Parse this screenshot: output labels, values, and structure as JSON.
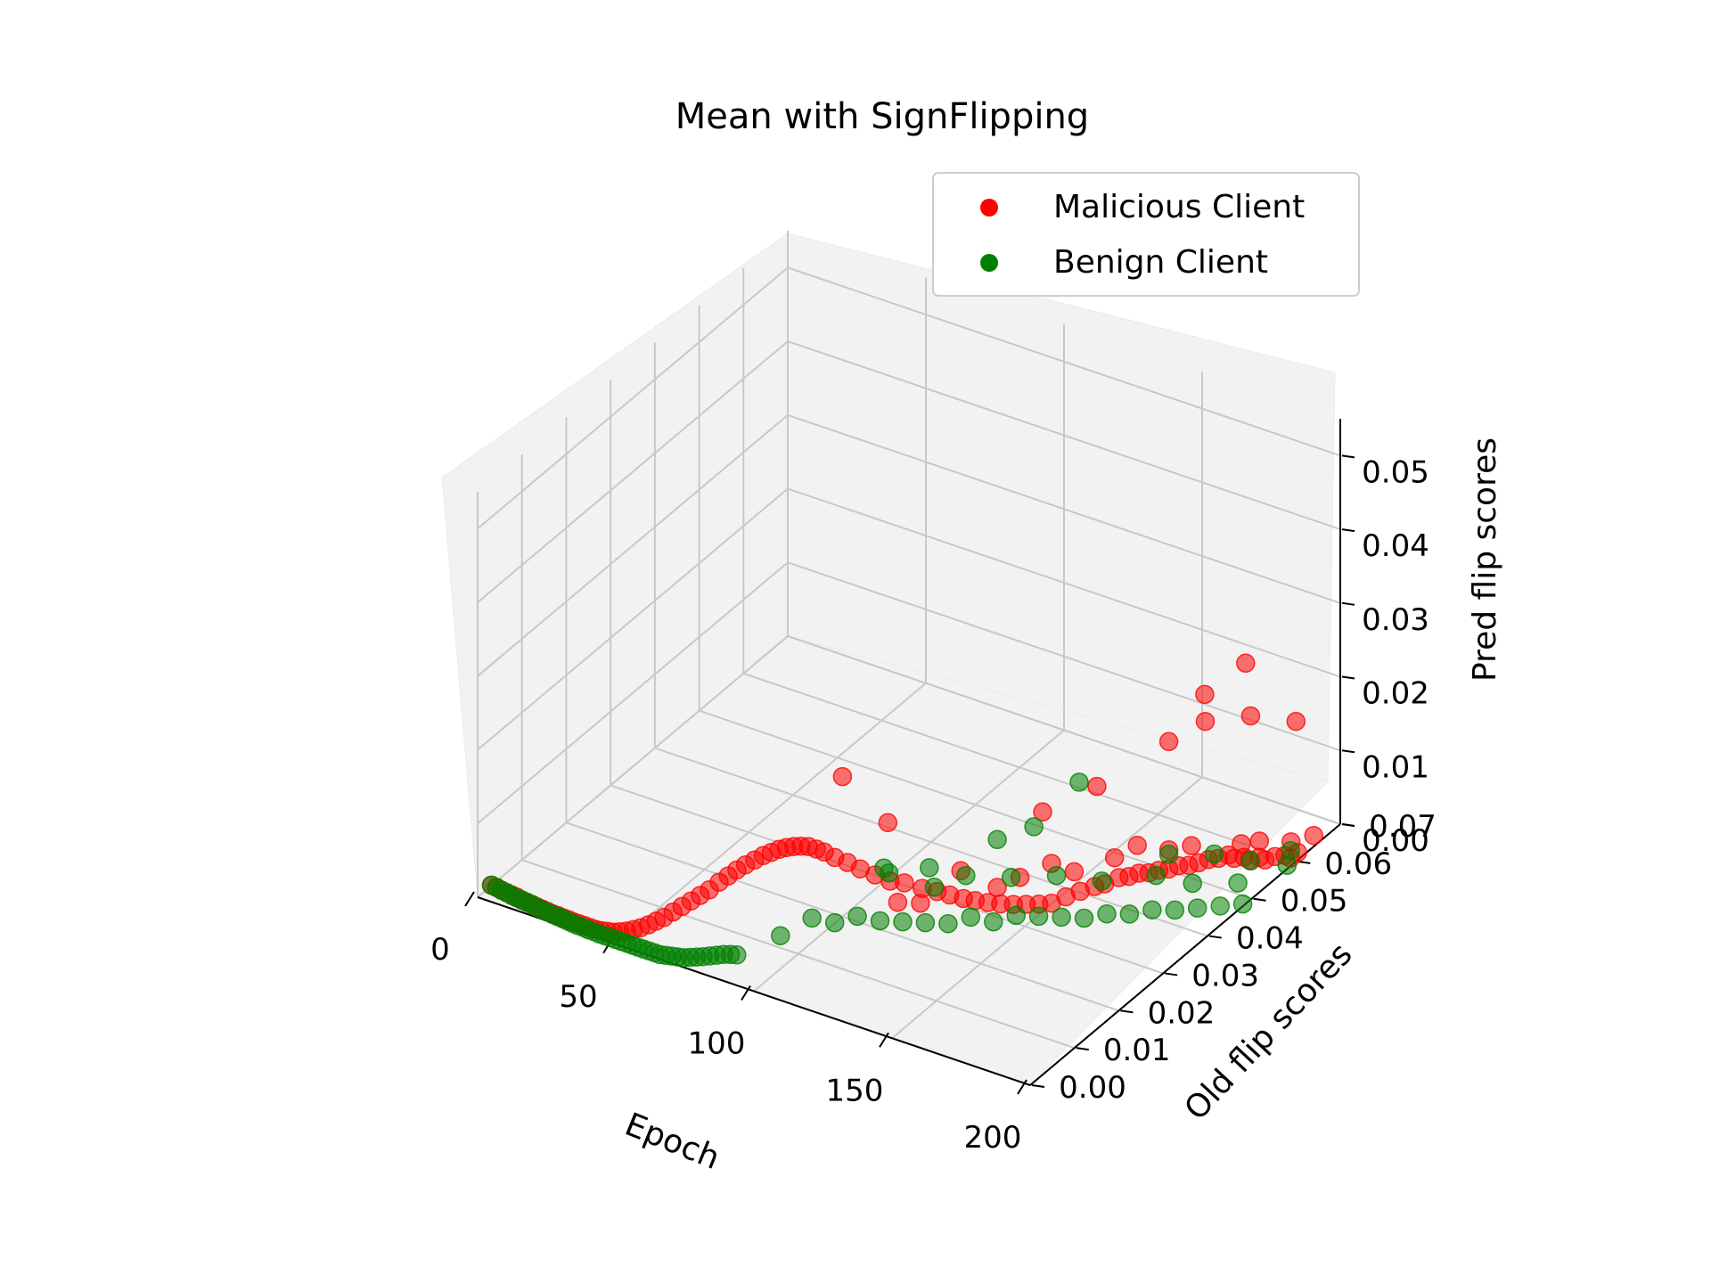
{
  "chart_data": {
    "type": "scatter",
    "projection": "3d",
    "title": "Mean with SignFlipping",
    "xlabel": "Epoch",
    "ylabel": "Old flip scores",
    "zlabel": "Pred flip scores",
    "xlim": [
      0,
      200
    ],
    "ylim": [
      0.0,
      0.07
    ],
    "zlim": [
      0.0,
      0.055
    ],
    "xticks": [
      "0",
      "50",
      "100",
      "150",
      "200"
    ],
    "yticks": [
      "0.00",
      "0.01",
      "0.02",
      "0.03",
      "0.04",
      "0.05",
      "0.06",
      "0.07"
    ],
    "zticks": [
      "0.00",
      "0.01",
      "0.02",
      "0.03",
      "0.04",
      "0.05"
    ],
    "grid": true,
    "legend_position": "top-right",
    "series": [
      {
        "name": "Malicious Client",
        "color": "#ff0000",
        "trend_points": []
      },
      {
        "name": "Benign Client",
        "color": "#008000",
        "trend_points": []
      }
    ],
    "scatter_points": {
      "malicious": [
        [
          1,
          0.0025,
          0.0005
        ],
        [
          3,
          0.0024,
          0.0005
        ],
        [
          5,
          0.0023,
          0.0004
        ],
        [
          7,
          0.0022,
          0.0004
        ],
        [
          9,
          0.0021,
          0.0004
        ],
        [
          11,
          0.002,
          0.0004
        ],
        [
          13,
          0.0019,
          0.0003
        ],
        [
          15,
          0.0018,
          0.0003
        ],
        [
          17,
          0.0017,
          0.0003
        ],
        [
          19,
          0.0016,
          0.0003
        ],
        [
          21,
          0.0015,
          0.0003
        ],
        [
          23,
          0.0014,
          0.0003
        ],
        [
          25,
          0.0013,
          0.0003
        ],
        [
          27,
          0.0013,
          0.0003
        ],
        [
          29,
          0.0012,
          0.0003
        ],
        [
          31,
          0.0012,
          0.0003
        ],
        [
          33,
          0.0011,
          0.0003
        ],
        [
          35,
          0.0011,
          0.0003
        ],
        [
          37,
          0.0011,
          0.0003
        ],
        [
          39,
          0.0011,
          0.0003
        ],
        [
          41,
          0.0011,
          0.0003
        ],
        [
          43,
          0.0011,
          0.0004
        ],
        [
          45,
          0.0012,
          0.0005
        ],
        [
          47,
          0.0013,
          0.0006
        ],
        [
          49,
          0.0015,
          0.0008
        ],
        [
          51,
          0.0018,
          0.001
        ],
        [
          53,
          0.0021,
          0.0013
        ],
        [
          55,
          0.0025,
          0.0016
        ],
        [
          57,
          0.003,
          0.002
        ],
        [
          59,
          0.0035,
          0.0025
        ],
        [
          61,
          0.004,
          0.003
        ],
        [
          63,
          0.0048,
          0.0036
        ],
        [
          65,
          0.0056,
          0.0042
        ],
        [
          67,
          0.0064,
          0.0048
        ],
        [
          69,
          0.0072,
          0.0054
        ],
        [
          71,
          0.008,
          0.006
        ],
        [
          73,
          0.009,
          0.0068
        ],
        [
          75,
          0.0098,
          0.0075
        ],
        [
          77,
          0.0105,
          0.0082
        ],
        [
          79,
          0.0112,
          0.0088
        ],
        [
          81,
          0.012,
          0.0093
        ],
        [
          83,
          0.0127,
          0.0098
        ],
        [
          85,
          0.0133,
          0.0102
        ],
        [
          87,
          0.0138,
          0.0106
        ],
        [
          89,
          0.0142,
          0.0109
        ],
        [
          91,
          0.0146,
          0.0111
        ],
        [
          93,
          0.015,
          0.0112
        ],
        [
          95,
          0.0154,
          0.0112
        ],
        [
          97,
          0.016,
          0.0108
        ],
        [
          99,
          0.0165,
          0.0104
        ],
        [
          102,
          0.017,
          0.0098
        ],
        [
          105,
          0.018,
          0.009
        ],
        [
          108,
          0.019,
          0.008
        ],
        [
          111,
          0.0205,
          0.0068
        ],
        [
          114,
          0.022,
          0.0056
        ],
        [
          116,
          0.024,
          0.0046
        ],
        [
          120,
          0.0255,
          0.0036
        ],
        [
          123,
          0.027,
          0.0028
        ],
        [
          126,
          0.028,
          0.0022
        ],
        [
          129,
          0.0292,
          0.0015
        ],
        [
          132,
          0.03,
          0.0012
        ],
        [
          135,
          0.031,
          0.0008
        ],
        [
          138,
          0.032,
          0.0005
        ],
        [
          141,
          0.033,
          0.0003
        ],
        [
          144,
          0.034,
          0.0002
        ],
        [
          147,
          0.035,
          0.0001
        ],
        [
          150,
          0.036,
          0.0001
        ],
        [
          152,
          0.038,
          0.0002
        ],
        [
          154,
          0.04,
          0.0002
        ],
        [
          156,
          0.042,
          0.0001
        ],
        [
          158,
          0.043,
          0.0002
        ],
        [
          160,
          0.045,
          0.0003
        ],
        [
          162,
          0.046,
          0.0002
        ],
        [
          164,
          0.047,
          0.0004
        ],
        [
          166,
          0.048,
          0.0002
        ],
        [
          168,
          0.049,
          0.0003
        ],
        [
          170,
          0.05,
          0.0002
        ],
        [
          172,
          0.051,
          0.0004
        ],
        [
          174,
          0.052,
          0.0002
        ],
        [
          176,
          0.053,
          0.0003
        ],
        [
          178,
          0.054,
          0.0005
        ],
        [
          180,
          0.055,
          0.0004
        ],
        [
          182,
          0.056,
          0.0006
        ],
        [
          184,
          0.056,
          0.0004
        ],
        [
          186,
          0.057,
          0.0003
        ],
        [
          188,
          0.057,
          0.0002
        ],
        [
          190,
          0.058,
          0.0003
        ],
        [
          192,
          0.058,
          0.0002
        ],
        [
          194,
          0.059,
          0.0004
        ],
        [
          196,
          0.06,
          0.0003
        ],
        [
          198,
          0.06,
          0.0002
        ],
        [
          199,
          0.061,
          0.0006
        ],
        [
          120,
          0.02,
          0.0045
        ],
        [
          125,
          0.022,
          0.004
        ],
        [
          130,
          0.028,
          0.006
        ],
        [
          140,
          0.03,
          0.004
        ],
        [
          145,
          0.032,
          0.005
        ],
        [
          150,
          0.036,
          0.0055
        ],
        [
          155,
          0.038,
          0.004
        ],
        [
          160,
          0.044,
          0.0035
        ],
        [
          165,
          0.046,
          0.0048
        ],
        [
          170,
          0.05,
          0.0028
        ],
        [
          175,
          0.052,
          0.003
        ],
        [
          185,
          0.057,
          0.002
        ],
        [
          190,
          0.058,
          0.0025
        ],
        [
          195,
          0.062,
          0.001
        ],
        [
          200,
          0.064,
          0.0015
        ],
        [
          110,
          0.024,
          0.012
        ],
        [
          100,
          0.02,
          0.019
        ],
        [
          150,
          0.034,
          0.0135
        ],
        [
          160,
          0.04,
          0.0152
        ],
        [
          170,
          0.05,
          0.0175
        ],
        [
          180,
          0.052,
          0.0205
        ],
        [
          190,
          0.056,
          0.0205
        ],
        [
          200,
          0.06,
          0.019
        ],
        [
          175,
          0.055,
          0.022
        ],
        [
          185,
          0.058,
          0.026
        ]
      ],
      "benign": [
        [
          1,
          0.0025,
          0.0005
        ],
        [
          3,
          0.0024,
          0.0005
        ],
        [
          5,
          0.0023,
          0.0004
        ],
        [
          7,
          0.0022,
          0.0004
        ],
        [
          9,
          0.0021,
          0.0003
        ],
        [
          11,
          0.002,
          0.0003
        ],
        [
          13,
          0.0019,
          0.0003
        ],
        [
          15,
          0.0018,
          0.0003
        ],
        [
          17,
          0.0017,
          0.0003
        ],
        [
          19,
          0.0016,
          0.0002
        ],
        [
          21,
          0.0015,
          0.0002
        ],
        [
          23,
          0.0014,
          0.0002
        ],
        [
          25,
          0.0013,
          0.0002
        ],
        [
          27,
          0.0012,
          0.0002
        ],
        [
          29,
          0.0011,
          0.0002
        ],
        [
          31,
          0.001,
          0.0002
        ],
        [
          33,
          0.0009,
          0.0002
        ],
        [
          35,
          0.0008,
          0.0002
        ],
        [
          37,
          0.0008,
          0.0002
        ],
        [
          39,
          0.0007,
          0.0002
        ],
        [
          41,
          0.0007,
          0.0002
        ],
        [
          43,
          0.0006,
          0.0002
        ],
        [
          45,
          0.0006,
          0.0002
        ],
        [
          47,
          0.0006,
          0.0002
        ],
        [
          49,
          0.0006,
          0.0002
        ],
        [
          51,
          0.0006,
          0.0002
        ],
        [
          53,
          0.0006,
          0.0002
        ],
        [
          55,
          0.0006,
          0.0002
        ],
        [
          57,
          0.0006,
          0.0002
        ],
        [
          59,
          0.0006,
          0.0002
        ],
        [
          61,
          0.0006,
          0.0002
        ],
        [
          63,
          0.0006,
          0.0002
        ],
        [
          65,
          0.0006,
          0.0002
        ],
        [
          67,
          0.0007,
          0.0003
        ],
        [
          69,
          0.0008,
          0.0004
        ],
        [
          71,
          0.0009,
          0.0005
        ],
        [
          73,
          0.001,
          0.0006
        ],
        [
          75,
          0.0012,
          0.0008
        ],
        [
          77,
          0.0014,
          0.001
        ],
        [
          79,
          0.0016,
          0.0012
        ],
        [
          81,
          0.0019,
          0.0014
        ],
        [
          83,
          0.0022,
          0.0016
        ],
        [
          85,
          0.0025,
          0.0018
        ],
        [
          87,
          0.0028,
          0.0019
        ],
        [
          89,
          0.003,
          0.002
        ],
        [
          100,
          0.006,
          0.0045
        ],
        [
          105,
          0.01,
          0.0055
        ],
        [
          110,
          0.012,
          0.0045
        ],
        [
          115,
          0.014,
          0.005
        ],
        [
          120,
          0.016,
          0.004
        ],
        [
          125,
          0.018,
          0.0035
        ],
        [
          130,
          0.02,
          0.003
        ],
        [
          135,
          0.022,
          0.0025
        ],
        [
          140,
          0.024,
          0.003
        ],
        [
          145,
          0.026,
          0.002
        ],
        [
          150,
          0.028,
          0.0025
        ],
        [
          155,
          0.03,
          0.002
        ],
        [
          160,
          0.032,
          0.0015
        ],
        [
          165,
          0.034,
          0.001
        ],
        [
          170,
          0.036,
          0.0012
        ],
        [
          175,
          0.038,
          0.0008
        ],
        [
          180,
          0.04,
          0.001
        ],
        [
          185,
          0.042,
          0.0006
        ],
        [
          190,
          0.044,
          0.0005
        ],
        [
          195,
          0.046,
          0.0004
        ],
        [
          200,
          0.048,
          0.0003
        ],
        [
          115,
          0.02,
          0.0085
        ],
        [
          125,
          0.024,
          0.0078
        ],
        [
          135,
          0.026,
          0.007
        ],
        [
          145,
          0.03,
          0.006
        ],
        [
          155,
          0.034,
          0.0055
        ],
        [
          165,
          0.038,
          0.004
        ],
        [
          175,
          0.044,
          0.003
        ],
        [
          185,
          0.046,
          0.0022
        ],
        [
          195,
          0.05,
          0.0015
        ],
        [
          140,
          0.03,
          0.0105
        ],
        [
          150,
          0.032,
          0.0125
        ],
        [
          160,
          0.036,
          0.0178
        ],
        [
          170,
          0.05,
          0.0022
        ],
        [
          180,
          0.054,
          0.0015
        ],
        [
          190,
          0.056,
          0.0008
        ],
        [
          200,
          0.058,
          0.0005
        ],
        [
          198,
          0.06,
          0.0012
        ],
        [
          120,
          0.018,
          0.0095
        ],
        [
          130,
          0.022,
          0.0068
        ]
      ]
    }
  }
}
